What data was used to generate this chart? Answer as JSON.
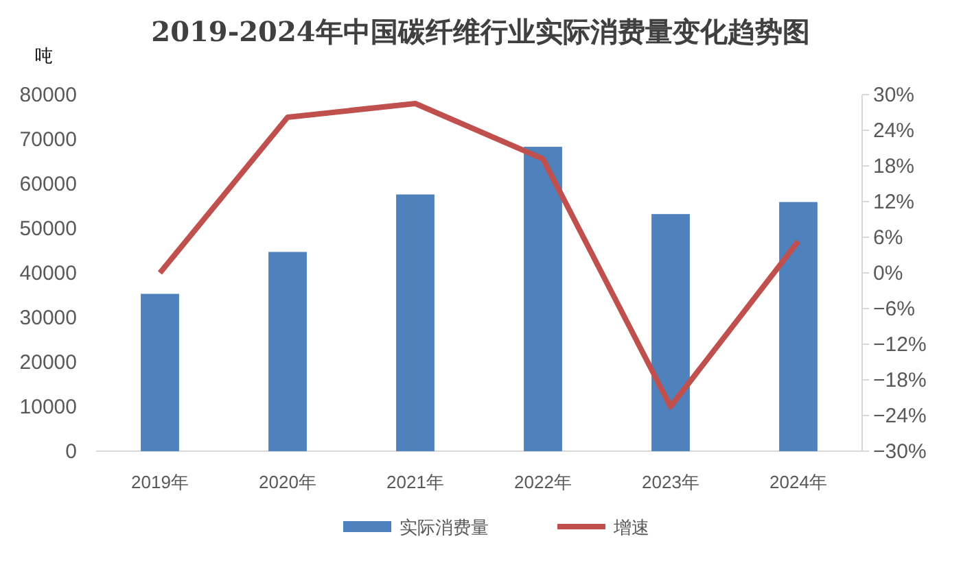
{
  "chart_data": {
    "type": "bar",
    "title": "2019-2024年中国碳纤维行业实际消费量变化趋势图",
    "ylabel": "吨",
    "categories": [
      "2019年",
      "2020年",
      "2021年",
      "2022年",
      "2023年",
      "2024年"
    ],
    "series": [
      {
        "name": "实际消费量",
        "color": "#4f81bd",
        "values": [
          35300,
          44700,
          57600,
          68300,
          53200,
          55900
        ]
      },
      {
        "name": "增速",
        "type": "line",
        "axis": "y2",
        "color": "#c0504d",
        "values": [
          0,
          26.2,
          28.5,
          19.2,
          -22.5,
          5.3
        ]
      }
    ],
    "ylim": [
      0,
      80000
    ],
    "yticks": [
      0,
      10000,
      20000,
      30000,
      40000,
      50000,
      60000,
      70000,
      80000
    ],
    "y2lim": [
      -30,
      30
    ],
    "y2ticks": [
      {
        "value": -30,
        "label": "−30%"
      },
      {
        "value": -24,
        "label": "−24%"
      },
      {
        "value": -18,
        "label": "−18%"
      },
      {
        "value": -12,
        "label": "−12%"
      },
      {
        "value": -6,
        "label": "−6%"
      },
      {
        "value": 0,
        "label": "0%"
      },
      {
        "value": 6,
        "label": "6%"
      },
      {
        "value": 12,
        "label": "12%"
      },
      {
        "value": 18,
        "label": "18%"
      },
      {
        "value": 24,
        "label": "24%"
      },
      {
        "value": 30,
        "label": "30%"
      }
    ],
    "legend": "bottom",
    "grid": false,
    "marker": "none",
    "line_style": "solid"
  }
}
